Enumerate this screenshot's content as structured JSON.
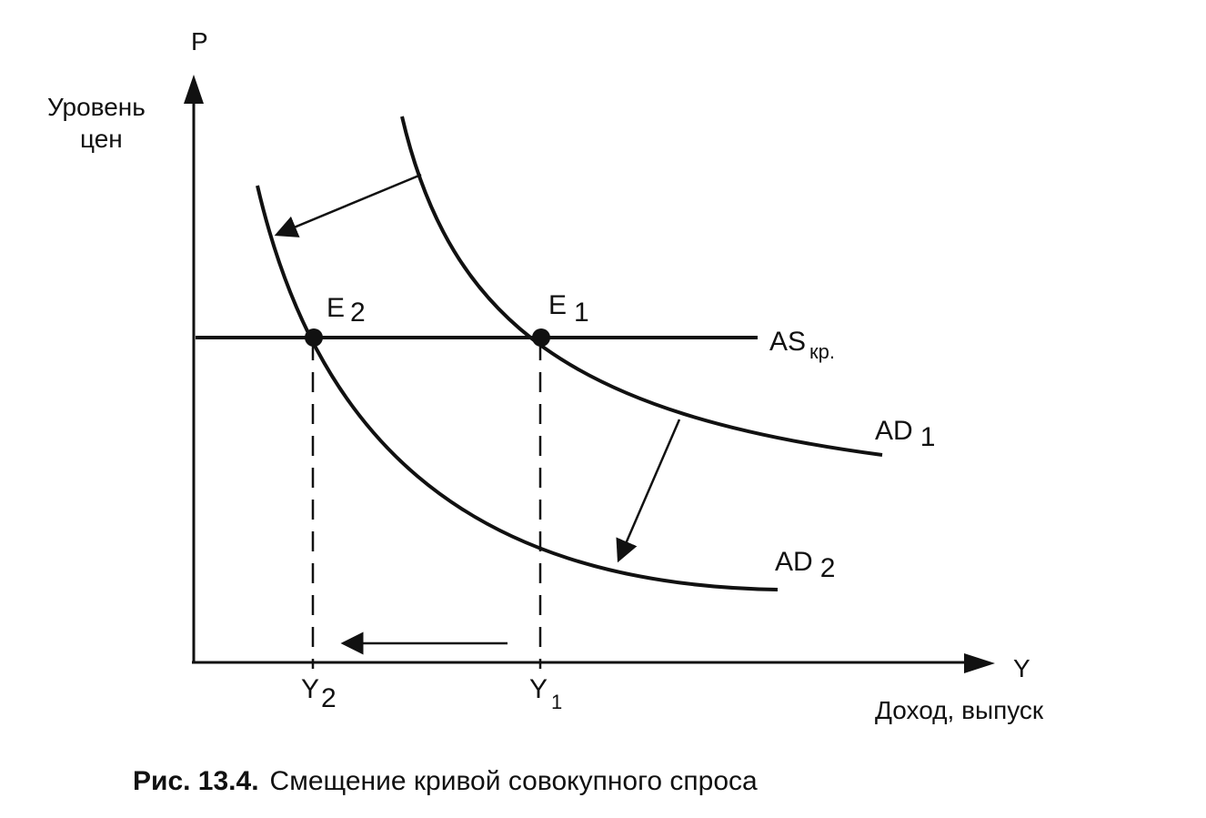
{
  "axes": {
    "y_symbol": "P",
    "y_name_line1": "Уровень",
    "y_name_line2": "цен",
    "x_symbol": "Y",
    "x_name": "Доход, выпуск"
  },
  "curves": {
    "as": {
      "main": "AS",
      "sub": "кр."
    },
    "ad1": {
      "main": "AD",
      "sub": "1"
    },
    "ad2": {
      "main": "AD",
      "sub": "2"
    }
  },
  "points": {
    "e1": {
      "main": "E",
      "sub": "1"
    },
    "e2": {
      "main": "E",
      "sub": "2"
    }
  },
  "ticks": {
    "y1": {
      "main": "Y",
      "sub": "1"
    },
    "y2": {
      "main": "Y",
      "sub": "2"
    }
  },
  "caption": {
    "number": "Рис. 13.4.",
    "text": "Смещение кривой совокупного спроса"
  },
  "colors": {
    "ink": "#111111",
    "background": "#ffffff"
  }
}
